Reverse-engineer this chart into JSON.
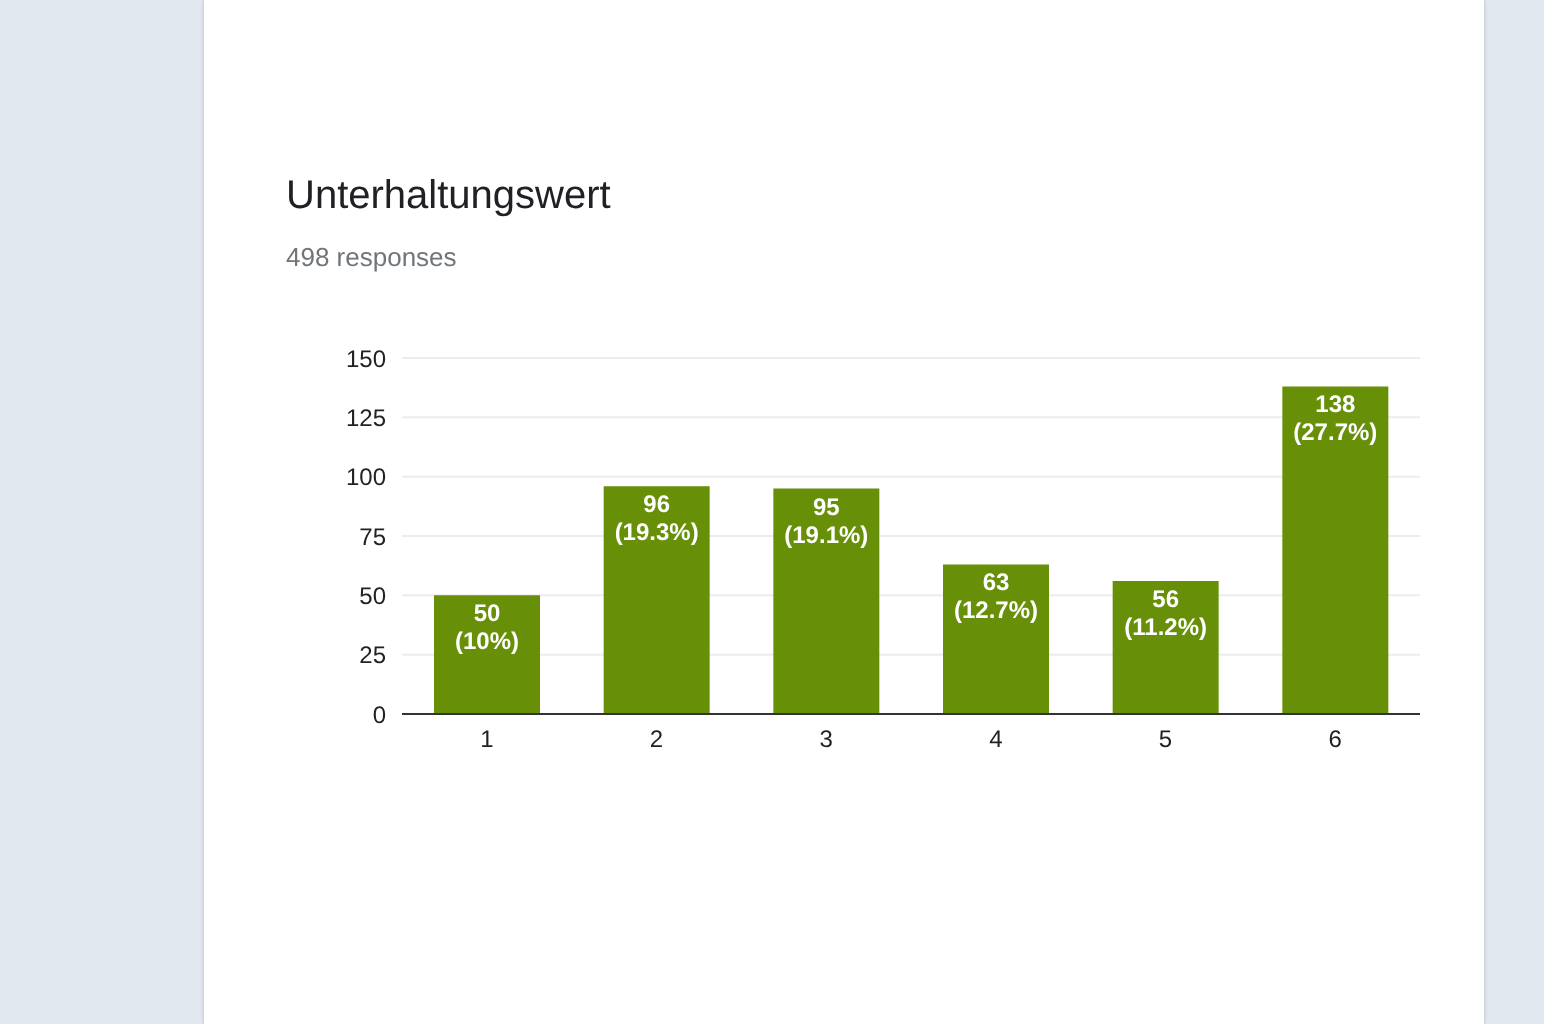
{
  "chart_data": {
    "type": "bar",
    "title": "Unterhaltungswert",
    "subtitle": "498 responses",
    "categories": [
      "1",
      "2",
      "3",
      "4",
      "5",
      "6"
    ],
    "values": [
      50,
      96,
      95,
      63,
      56,
      138
    ],
    "color": "#678f07",
    "value_labels": [
      "50 (10%)",
      "96 (19.3%)",
      "95 (19.1%)",
      "63 (12.7%)",
      "56 (11.2%)",
      "138 (27.7%)"
    ],
    "ylim": [
      0,
      150
    ],
    "yticks": [
      0,
      25,
      50,
      75,
      100,
      125,
      150
    ],
    "grid": "y",
    "legend": false
  }
}
